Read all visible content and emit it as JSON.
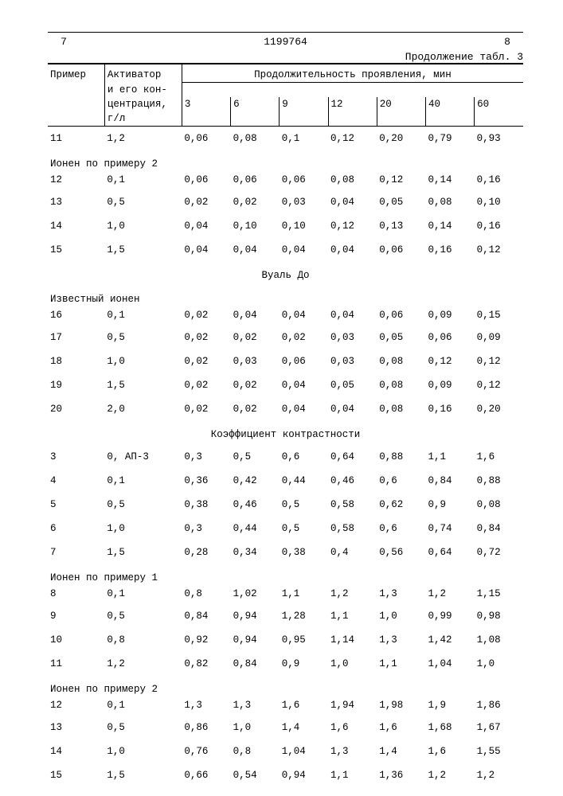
{
  "header": {
    "page_left": "7",
    "doc_number": "1199764",
    "page_right": "8",
    "continuation": "Продолжение табл. 3"
  },
  "columns": {
    "primer": "Пример",
    "activator_l1": "Активатор",
    "activator_l2": "и его кон-",
    "activator_l3": "центрация,",
    "activator_l4": "г/л",
    "duration": "Продолжительность проявления, мин",
    "times": [
      "3",
      "6",
      "9",
      "12",
      "20",
      "40",
      "60"
    ]
  },
  "sections": [
    {
      "title": null,
      "rows": [
        {
          "primer": "11",
          "act": "1,2",
          "v": [
            "0,06",
            "0,08",
            "0,1",
            "0,12",
            "0,20",
            "0,79",
            "0,93"
          ]
        }
      ]
    },
    {
      "title": null,
      "label": "Ионен по примеру 2",
      "rows": [
        {
          "primer": "12",
          "act": "0,1",
          "v": [
            "0,06",
            "0,06",
            "0,06",
            "0,08",
            "0,12",
            "0,14",
            "0,16"
          ]
        },
        {
          "primer": "13",
          "act": "0,5",
          "v": [
            "0,02",
            "0,02",
            "0,03",
            "0,04",
            "0,05",
            "0,08",
            "0,10"
          ]
        },
        {
          "primer": "14",
          "act": "1,0",
          "v": [
            "0,04",
            "0,10",
            "0,10",
            "0,12",
            "0,13",
            "0,14",
            "0,16"
          ]
        },
        {
          "primer": "15",
          "act": "1,5",
          "v": [
            "0,04",
            "0,04",
            "0,04",
            "0,04",
            "0,06",
            "0,16",
            "0,12"
          ]
        }
      ]
    },
    {
      "title": "Вуаль До",
      "label": "Известный ионен",
      "rows": [
        {
          "primer": "16",
          "act": "0,1",
          "v": [
            "0,02",
            "0,04",
            "0,04",
            "0,04",
            "0,06",
            "0,09",
            "0,15"
          ]
        },
        {
          "primer": "17",
          "act": "0,5",
          "v": [
            "0,02",
            "0,02",
            "0,02",
            "0,03",
            "0,05",
            "0,06",
            "0,09"
          ]
        },
        {
          "primer": "18",
          "act": "1,0",
          "v": [
            "0,02",
            "0,03",
            "0,06",
            "0,03",
            "0,08",
            "0,12",
            "0,12"
          ]
        },
        {
          "primer": "19",
          "act": "1,5",
          "v": [
            "0,02",
            "0,02",
            "0,04",
            "0,05",
            "0,08",
            "0,09",
            "0,12"
          ]
        },
        {
          "primer": "20",
          "act": "2,0",
          "v": [
            "0,02",
            "0,02",
            "0,04",
            "0,04",
            "0,08",
            "0,16",
            "0,20"
          ]
        }
      ]
    },
    {
      "title": "Коэффициент контрастности",
      "rows": [
        {
          "primer": "3",
          "act": "0, АП-3",
          "v": [
            "0,3",
            "0,5",
            "0,6",
            "0,64",
            "0,88",
            "1,1",
            "1,6"
          ]
        },
        {
          "primer": "4",
          "act": "0,1",
          "v": [
            "0,36",
            "0,42",
            "0,44",
            "0,46",
            "0,6",
            "0,84",
            "0,88"
          ]
        },
        {
          "primer": "5",
          "act": "0,5",
          "v": [
            "0,38",
            "0,46",
            "0,5",
            "0,58",
            "0,62",
            "0,9",
            "0,08"
          ]
        },
        {
          "primer": "6",
          "act": "1,0",
          "v": [
            "0,3",
            "0,44",
            "0,5",
            "0,58",
            "0,6",
            "0,74",
            "0,84"
          ]
        },
        {
          "primer": "7",
          "act": "1,5",
          "v": [
            "0,28",
            "0,34",
            "0,38",
            "0,4",
            "0,56",
            "0,64",
            "0,72"
          ]
        }
      ]
    },
    {
      "title": null,
      "label": "Ионен по примеру 1",
      "rows": [
        {
          "primer": "8",
          "act": "0,1",
          "v": [
            "0,8",
            "1,02",
            "1,1",
            "1,2",
            "1,3",
            "1,2",
            "1,15"
          ]
        },
        {
          "primer": "9",
          "act": "0,5",
          "v": [
            "0,84",
            "0,94",
            "1,28",
            "1,1",
            "1,0",
            "0,99",
            "0,98"
          ]
        },
        {
          "primer": "10",
          "act": "0,8",
          "v": [
            "0,92",
            "0,94",
            "0,95",
            "1,14",
            "1,3",
            "1,42",
            "1,08"
          ]
        },
        {
          "primer": "11",
          "act": "1,2",
          "v": [
            "0,82",
            "0,84",
            "0,9",
            "1,0",
            "1,1",
            "1,04",
            "1,0"
          ]
        }
      ]
    },
    {
      "title": null,
      "label": "Ионен по примеру 2",
      "rows": [
        {
          "primer": "12",
          "act": "0,1",
          "v": [
            "1,3",
            "1,3",
            "1,6",
            "1,94",
            "1,98",
            "1,9",
            "1,86"
          ]
        },
        {
          "primer": "13",
          "act": "0,5",
          "v": [
            "0,86",
            "1,0",
            "1,4",
            "1,6",
            "1,6",
            "1,68",
            "1,67"
          ]
        },
        {
          "primer": "14",
          "act": "1,0",
          "v": [
            "0,76",
            "0,8",
            "1,04",
            "1,3",
            "1,4",
            "1,6",
            "1,55"
          ]
        },
        {
          "primer": "15",
          "act": "1,5",
          "v": [
            "0,66",
            "0,54",
            "0,94",
            "1,1",
            "1,36",
            "1,2",
            "1,2"
          ]
        }
      ]
    }
  ]
}
